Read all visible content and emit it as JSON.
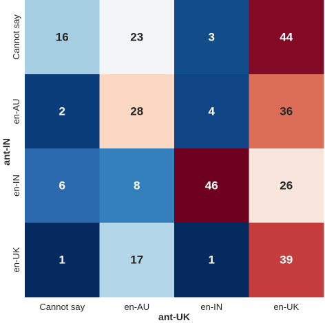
{
  "chart_data": {
    "type": "heatmap",
    "xlabel": "ant-UK",
    "ylabel": "ant-IN",
    "x_categories": [
      "Cannot say",
      "en-AU",
      "en-IN",
      "en-UK"
    ],
    "y_categories": [
      "Cannot say",
      "en-AU",
      "en-IN",
      "en-UK"
    ],
    "values": [
      [
        16,
        23,
        3,
        44
      ],
      [
        2,
        28,
        4,
        36
      ],
      [
        6,
        8,
        46,
        26
      ],
      [
        1,
        17,
        1,
        39
      ]
    ],
    "colormap": "RdBu_r",
    "legend": "none"
  },
  "colors": {
    "cells": [
      [
        "#a6cfe4",
        "#f3f5f6",
        "#124d8a",
        "#820a24"
      ],
      [
        "#0b3d7a",
        "#fbd8c3",
        "#0f4584",
        "#dc6e57"
      ],
      [
        "#2b6aae",
        "#3380bd",
        "#6e0020",
        "#f8e5dc"
      ],
      [
        "#052a60",
        "#b3d6e8",
        "#052a60",
        "#c43c3b"
      ]
    ],
    "label_dark": "#262626",
    "label_light": "#ffffff"
  }
}
